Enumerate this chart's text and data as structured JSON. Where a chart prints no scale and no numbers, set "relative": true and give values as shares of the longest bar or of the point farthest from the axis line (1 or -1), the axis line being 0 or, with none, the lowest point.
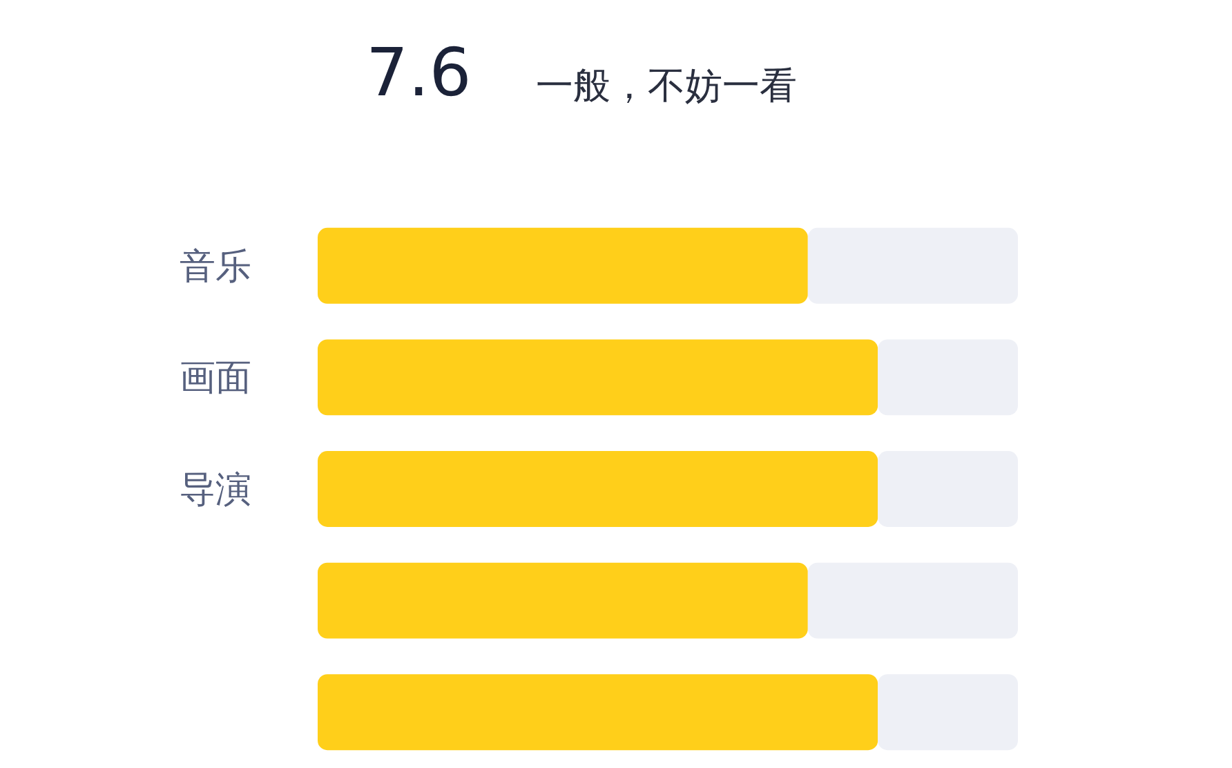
{
  "chart_data": {
    "type": "bar",
    "orientation": "horizontal",
    "stacked": true,
    "relative": true,
    "title": "7.6",
    "subtitle": "一般，不妨一看",
    "categories": [
      "音乐",
      "画面",
      "导演",
      null,
      null
    ],
    "series": [
      {
        "color": "#ffcf1a",
        "values": [
          0.7,
          0.8,
          0.8,
          0.7,
          0.8
        ]
      },
      {
        "color": "#eef0f6",
        "values": [
          0.3,
          0.2,
          0.2,
          0.3,
          0.2
        ]
      }
    ],
    "tick_labels": "y"
  }
}
